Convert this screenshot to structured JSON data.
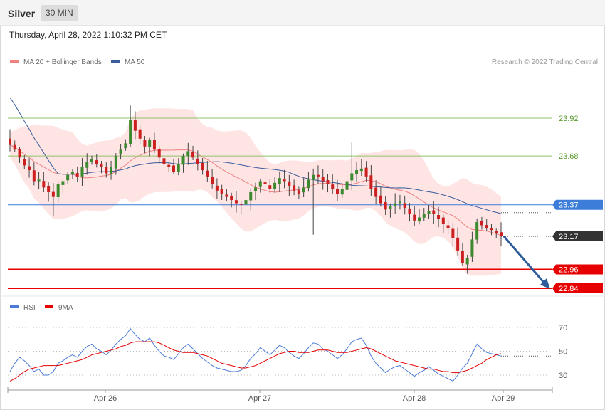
{
  "header": {
    "symbol": "Silver",
    "timeframe": "30 MIN",
    "timestamp": "Thursday, April 28, 2022 1:10:32 PM CET"
  },
  "colors": {
    "bollinger_fill": "#ffd9d9",
    "ma20": "#f08080",
    "ma50": "#3a5d9c",
    "up_candle": "#3c8a2e",
    "down_candle": "#cc1f1f",
    "resistance": "#8fc26a",
    "pivot": "#3b7dd8",
    "support": "#e60000",
    "last_price": "#333333",
    "arrow": "#2f5d99",
    "rsi": "#4a7bd8",
    "rsi_ma": "#e60000"
  },
  "chart_data": [
    {
      "type": "candlestick",
      "legend": [
        {
          "label": "MA 20 + Bollinger Bands",
          "color": "#f08080"
        },
        {
          "label": "MA 50",
          "color": "#3a5d9c"
        }
      ],
      "attribution": "Research © 2022 Trading Central",
      "x_ticks": [
        "Apr 26",
        "Apr 27",
        "Apr 28",
        "Apr 29"
      ],
      "ylim": [
        22.84,
        24.1
      ],
      "levels": [
        {
          "value": 23.92,
          "label": "23.92",
          "kind": "resistance"
        },
        {
          "value": 23.68,
          "label": "23.68",
          "kind": "resistance"
        },
        {
          "value": 23.37,
          "label": "23.37",
          "kind": "pivot"
        },
        {
          "value": 23.17,
          "label": "23.17",
          "kind": "last"
        },
        {
          "value": 22.96,
          "label": "22.96",
          "kind": "support"
        },
        {
          "value": 22.84,
          "label": "22.84",
          "kind": "support"
        }
      ],
      "close_path": [
        23.75,
        23.72,
        23.67,
        23.62,
        23.59,
        23.52,
        23.53,
        23.48,
        23.45,
        23.42,
        23.5,
        23.52,
        23.56,
        23.58,
        23.55,
        23.61,
        23.64,
        23.66,
        23.63,
        23.61,
        23.57,
        23.61,
        23.68,
        23.72,
        23.76,
        23.91,
        23.84,
        23.79,
        23.74,
        23.78,
        23.72,
        23.67,
        23.63,
        23.61,
        23.58,
        23.63,
        23.68,
        23.71,
        23.67,
        23.63,
        23.59,
        23.55,
        23.5,
        23.46,
        23.44,
        23.42,
        23.4,
        23.38,
        23.37,
        23.4,
        23.45,
        23.48,
        23.52,
        23.5,
        23.47,
        23.51,
        23.54,
        23.52,
        23.49,
        23.46,
        23.44,
        23.48,
        23.53,
        23.56,
        23.55,
        23.52,
        23.5,
        23.47,
        23.44,
        23.47,
        23.52,
        23.57,
        23.59,
        23.6,
        23.55,
        23.47,
        23.42,
        23.38,
        23.34,
        23.36,
        23.38,
        23.39,
        23.35,
        23.31,
        23.27,
        23.29,
        23.31,
        23.33,
        23.31,
        23.28,
        23.25,
        23.22,
        23.16,
        23.08,
        23.0,
        23.03,
        23.15,
        23.26,
        23.24,
        23.22,
        23.21,
        23.19,
        23.17
      ],
      "rsi": {
        "legend": [
          {
            "label": "RSI",
            "color": "#4a7bd8"
          },
          {
            "label": "9MA",
            "color": "#e60000"
          }
        ],
        "ticks": [
          70,
          50,
          30
        ],
        "ylim": [
          20,
          80
        ],
        "values": [
          33,
          40,
          45,
          42,
          38,
          33,
          35,
          30,
          30,
          33,
          40,
          42,
          45,
          47,
          45,
          50,
          54,
          56,
          52,
          50,
          47,
          51,
          56,
          60,
          63,
          69,
          64,
          60,
          58,
          61,
          55,
          50,
          46,
          45,
          43,
          48,
          53,
          56,
          52,
          48,
          44,
          41,
          38,
          36,
          35,
          34,
          33,
          33,
          34,
          38,
          44,
          48,
          53,
          50,
          47,
          51,
          55,
          53,
          49,
          46,
          44,
          48,
          53,
          57,
          56,
          52,
          50,
          47,
          44,
          47,
          52,
          58,
          60,
          61,
          55,
          46,
          40,
          36,
          32,
          35,
          37,
          38,
          35,
          32,
          29,
          32,
          34,
          37,
          34,
          31,
          29,
          27,
          25,
          30,
          36,
          40,
          48,
          56,
          52,
          49,
          48,
          47,
          46
        ],
        "ma_values": [
          25,
          27,
          30,
          33,
          35,
          36,
          37,
          38,
          38,
          38,
          38,
          39,
          40,
          41,
          42,
          43,
          45,
          47,
          48,
          49,
          50,
          51,
          52,
          54,
          55,
          57,
          58,
          58,
          58,
          58,
          58,
          57,
          55,
          53,
          51,
          50,
          49,
          49,
          49,
          48,
          47,
          46,
          44,
          42,
          40,
          39,
          38,
          37,
          36,
          36,
          37,
          38,
          40,
          42,
          44,
          46,
          48,
          49,
          50,
          50,
          49,
          49,
          49,
          50,
          51,
          51,
          51,
          50,
          49,
          49,
          49,
          50,
          51,
          52,
          53,
          52,
          50,
          48,
          46,
          44,
          42,
          41,
          40,
          39,
          38,
          37,
          36,
          35,
          35,
          34,
          33,
          33,
          32,
          32,
          33,
          34,
          36,
          38,
          40,
          43,
          45,
          47,
          48
        ]
      }
    }
  ]
}
